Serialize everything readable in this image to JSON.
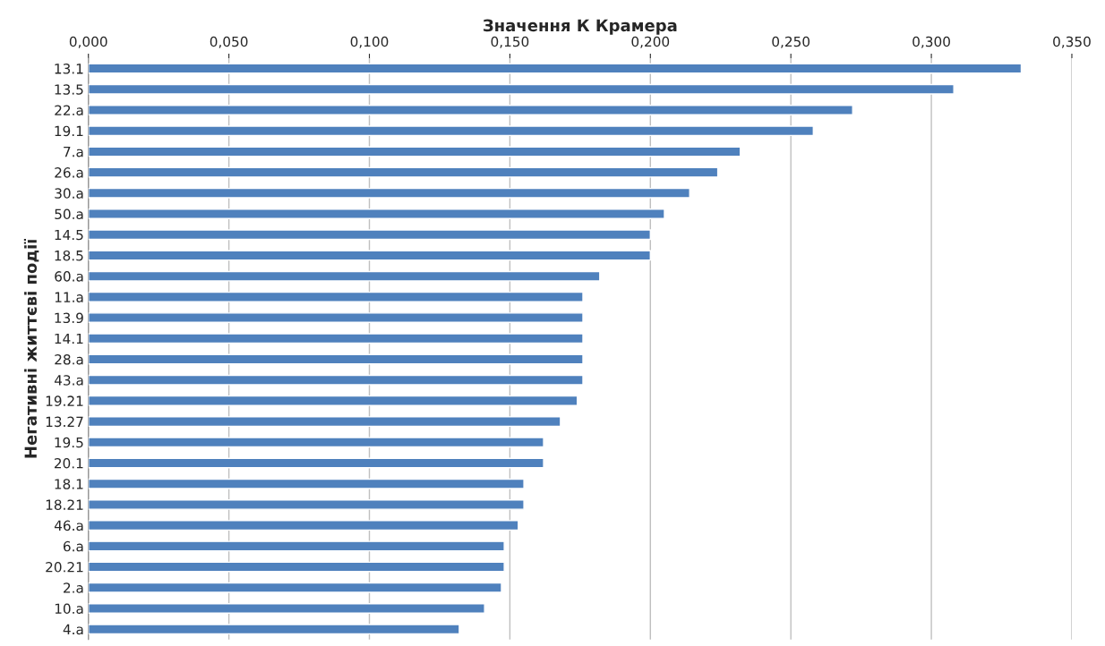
{
  "chart_data": {
    "type": "bar",
    "orientation": "horizontal",
    "xlabel": "Значення К Крамера",
    "ylabel": "Негативні життєві події",
    "categories": [
      "13.1",
      "13.5",
      "22.a",
      "19.1",
      "7.a",
      "26.a",
      "30.a",
      "50.a",
      "14.5",
      "18.5",
      "60.a",
      "11.a",
      "13.9",
      "14.1",
      "28.a",
      "43.a",
      "19.21",
      "13.27",
      "19.5",
      "20.1",
      "18.1",
      "18.21",
      "46.a",
      "6.a",
      "20.21",
      "2.a",
      "10.a",
      "4.a"
    ],
    "values": [
      0.332,
      0.308,
      0.272,
      0.258,
      0.232,
      0.224,
      0.214,
      0.205,
      0.2,
      0.2,
      0.182,
      0.176,
      0.176,
      0.176,
      0.176,
      0.176,
      0.174,
      0.168,
      0.162,
      0.162,
      0.155,
      0.155,
      0.153,
      0.148,
      0.148,
      0.147,
      0.141,
      0.132
    ],
    "color": "#4f81bd",
    "xlim": [
      0,
      0.35
    ],
    "xticks": [
      {
        "value": 0,
        "label": "0,000"
      },
      {
        "value": 0.05,
        "label": "0,050"
      },
      {
        "value": 0.1,
        "label": "0,100"
      },
      {
        "value": 0.15,
        "label": "0,150"
      },
      {
        "value": 0.2,
        "label": "0,200"
      },
      {
        "value": 0.25,
        "label": "0,250"
      },
      {
        "value": 0.3,
        "label": "0,300"
      },
      {
        "value": 0.35,
        "label": "0,350"
      }
    ],
    "grid": "x"
  }
}
